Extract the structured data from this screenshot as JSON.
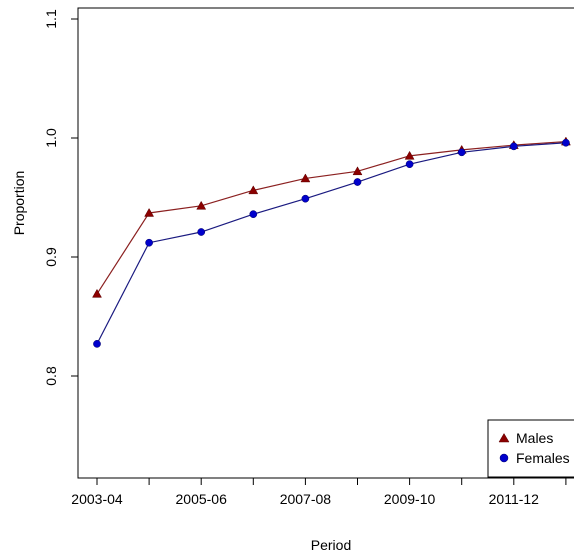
{
  "chart_data": {
    "type": "line",
    "xlabel": "Period",
    "ylabel": "Proportion",
    "ylim": [
      0.74,
      1.1
    ],
    "y_ticks": [
      0.8,
      0.9,
      1.0,
      1.1
    ],
    "y_tick_labels": [
      "0.8",
      "0.9",
      "1.0",
      "1.1"
    ],
    "x": [
      1,
      2,
      3,
      4,
      5,
      6,
      7,
      8,
      9,
      10
    ],
    "x_tick_positions": [
      1,
      3,
      5,
      7,
      9
    ],
    "x_tick_labels": [
      "2003-04",
      "2005-06",
      "2007-08",
      "2009-10",
      "2011-12"
    ],
    "series": [
      {
        "name": "Males",
        "color": "#8b0000",
        "marker": "triangle",
        "line_color": "#8b2020",
        "values": [
          0.869,
          0.937,
          0.943,
          0.956,
          0.966,
          0.972,
          0.985,
          0.99,
          0.994,
          0.997
        ]
      },
      {
        "name": "Females",
        "color": "#0000cc",
        "marker": "circle",
        "line_color": "#1a1a80",
        "values": [
          0.827,
          0.912,
          0.921,
          0.936,
          0.949,
          0.963,
          0.978,
          0.988,
          0.993,
          0.996
        ]
      }
    ],
    "legend_position": "bottom-right"
  }
}
